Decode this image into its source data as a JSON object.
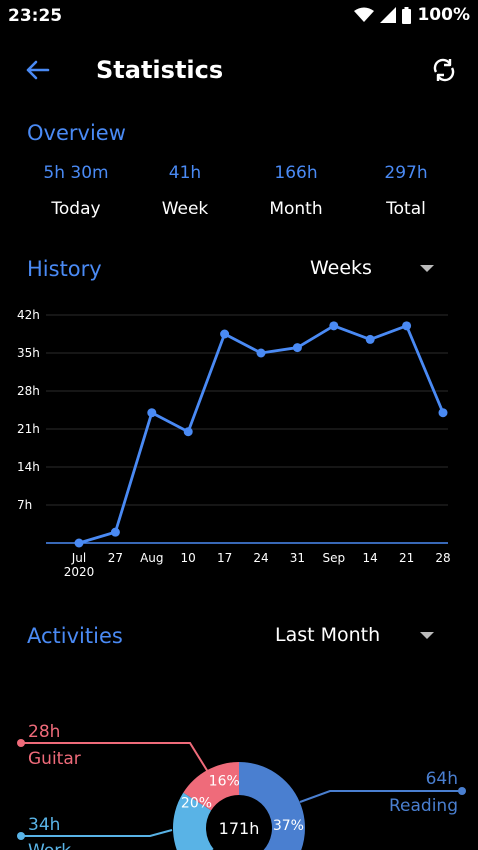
{
  "status_bar": {
    "time": "23:25",
    "battery": "100%"
  },
  "app_bar": {
    "title": "Statistics",
    "back_icon": "arrow-left-icon",
    "refresh_icon": "refresh-icon"
  },
  "colors": {
    "accent": "#4a8af4",
    "guitar": "#ef6b7a",
    "work": "#59b3e6",
    "reading": "#4a7fd0"
  },
  "overview": {
    "title": "Overview",
    "items": [
      {
        "value": "5h 30m",
        "label": "Today"
      },
      {
        "value": "41h",
        "label": "Week"
      },
      {
        "value": "166h",
        "label": "Month"
      },
      {
        "value": "297h",
        "label": "Total"
      }
    ]
  },
  "history": {
    "title": "History",
    "period": "Weeks"
  },
  "chart_data": {
    "type": "line",
    "x": [
      "Jul\n2020",
      "27",
      "Aug",
      "10",
      "17",
      "24",
      "31",
      "Sep",
      "14",
      "21",
      "28"
    ],
    "series": [
      {
        "values": [
          0,
          2,
          24,
          20.5,
          38.5,
          35,
          36,
          40,
          37.5,
          40,
          24
        ]
      }
    ],
    "yticks": [
      "7h",
      "14h",
      "21h",
      "28h",
      "35h",
      "42h"
    ],
    "ylim": [
      0,
      42
    ],
    "grid": true
  },
  "activities": {
    "title": "Activities",
    "period": "Last Month",
    "center_label": "171h",
    "items": [
      {
        "name": "Guitar",
        "hours": "28h",
        "percent": "16%",
        "fraction": 0.16
      },
      {
        "name": "Work",
        "hours": "34h",
        "percent": "20%",
        "fraction": 0.2
      },
      {
        "name": "Reading",
        "hours": "64h",
        "percent": "37%",
        "fraction": 0.37
      }
    ]
  }
}
